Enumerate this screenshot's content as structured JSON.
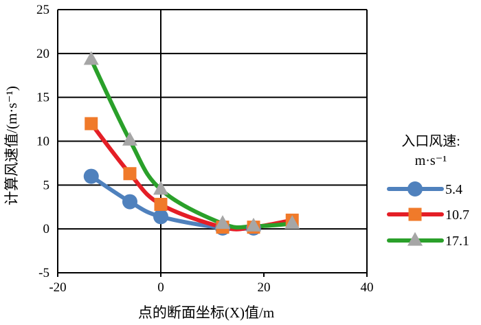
{
  "chart_data": {
    "type": "line",
    "xlabel": "点的断面坐标(X)值/m",
    "ylabel": "计算风速值/(m·s⁻¹)",
    "xlim": [
      -20,
      40
    ],
    "ylim": [
      -5,
      25
    ],
    "x_ticks": [
      "-20",
      "0",
      "20",
      "40"
    ],
    "y_ticks": [
      "-5",
      "0",
      "5",
      "10",
      "15",
      "20",
      "25"
    ],
    "grid": "horizontal",
    "smooth": true,
    "legend": {
      "title_line1": "入口风速:",
      "title_line2": "m·s⁻¹",
      "placement": "right"
    },
    "series": [
      {
        "name": "5.4",
        "color": "#4F81BD",
        "marker": "circle",
        "x": [
          -13.5,
          -6,
          0,
          12,
          18
        ],
        "y": [
          6.0,
          3.1,
          1.4,
          0.1,
          0.1
        ]
      },
      {
        "name": "10.7",
        "color": "#E41E26",
        "marker_color": "#F07A2A",
        "marker": "square",
        "x": [
          -13.5,
          -6,
          0,
          12,
          18,
          25.5
        ],
        "y": [
          12.0,
          6.3,
          2.8,
          0.2,
          0.2,
          1.0
        ]
      },
      {
        "name": "17.1",
        "color": "#2AA02A",
        "marker_color": "#A6A6A6",
        "marker": "triangle",
        "x": [
          -13.5,
          -6,
          0,
          12,
          18,
          25.5
        ],
        "y": [
          19.3,
          10.1,
          4.5,
          0.6,
          0.3,
          0.6
        ]
      }
    ]
  }
}
